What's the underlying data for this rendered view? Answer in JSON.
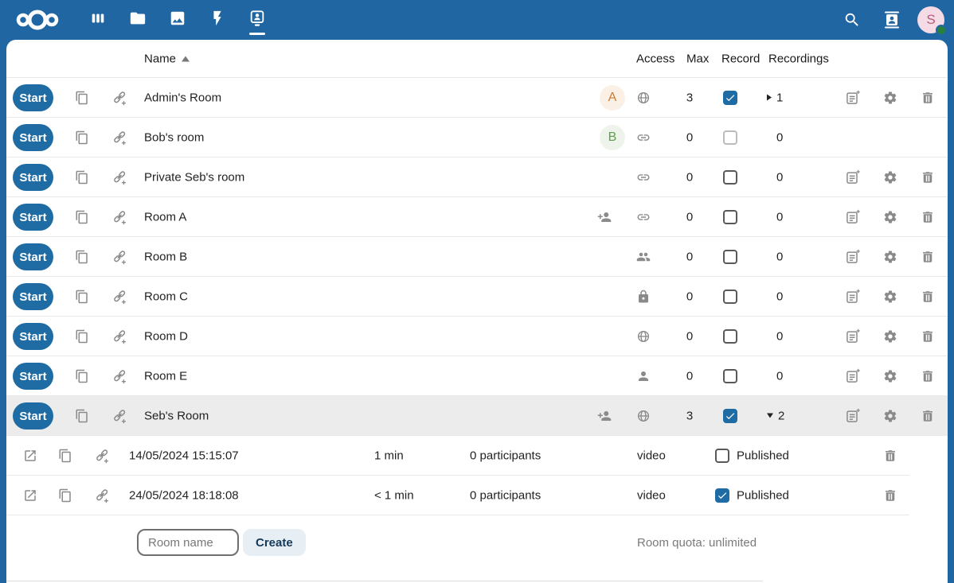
{
  "topbar": {
    "logo_icon": "nextcloud-logo",
    "nav": [
      {
        "id": "dashboard",
        "icon": "dashboard-icon",
        "active": false
      },
      {
        "id": "files",
        "icon": "folder-icon",
        "active": false
      },
      {
        "id": "photos",
        "icon": "photos-icon",
        "active": false
      },
      {
        "id": "activity",
        "icon": "activity-icon",
        "active": false
      },
      {
        "id": "bbb",
        "icon": "bbb-app-icon",
        "active": true
      }
    ],
    "search_icon": "search-icon",
    "contacts_icon": "contacts-icon",
    "avatar": {
      "letter": "S",
      "status": "online",
      "bg": "#f4dbe6",
      "fg": "#b55b7c",
      "status_color": "#27803b"
    }
  },
  "colors": {
    "header_blue": "#2066a3",
    "primary_blue": "#1e6ca3",
    "icon_gray": "#8a8a8a",
    "row_highlight": "#ececec"
  },
  "table": {
    "start_label": "Start",
    "headers": {
      "name": "Name",
      "access": "Access",
      "max": "Max",
      "record": "Record",
      "recordings": "Recordings"
    },
    "sort": "ascending",
    "row_icons": [
      "copy-icon",
      "add-link-icon"
    ],
    "action_icons": [
      "edit-document-icon",
      "settings-gear-icon",
      "delete-trash-icon"
    ],
    "rows": [
      {
        "name": "Admin's Room",
        "avatar": {
          "letter": "A",
          "fg": "#ca7b34",
          "bg": "#faf0e6"
        },
        "pre_access_icon": null,
        "access_icon": "globe-icon",
        "max": "3",
        "record_checked": true,
        "record_disabled": false,
        "recordings_count": "1",
        "expander": "collapsed",
        "has_actions": true,
        "highlighted": false
      },
      {
        "name": "Bob's room",
        "avatar": {
          "letter": "B",
          "fg": "#5f9e4f",
          "bg": "#eef4eb"
        },
        "pre_access_icon": null,
        "access_icon": "link-icon",
        "max": "0",
        "record_checked": false,
        "record_disabled": true,
        "recordings_count": "0",
        "expander": "none",
        "has_actions": false,
        "highlighted": false
      },
      {
        "name": "Private Seb's room",
        "avatar": null,
        "pre_access_icon": null,
        "access_icon": "link-icon",
        "max": "0",
        "record_checked": false,
        "record_disabled": false,
        "recordings_count": "0",
        "expander": "none",
        "has_actions": true,
        "highlighted": false
      },
      {
        "name": "Room A",
        "avatar": null,
        "pre_access_icon": "user-plus-icon",
        "access_icon": "link-icon",
        "max": "0",
        "record_checked": false,
        "record_disabled": false,
        "recordings_count": "0",
        "expander": "none",
        "has_actions": true,
        "highlighted": false
      },
      {
        "name": "Room B",
        "avatar": null,
        "pre_access_icon": null,
        "access_icon": "users-icon",
        "max": "0",
        "record_checked": false,
        "record_disabled": false,
        "recordings_count": "0",
        "expander": "none",
        "has_actions": true,
        "highlighted": false
      },
      {
        "name": "Room C",
        "avatar": null,
        "pre_access_icon": null,
        "access_icon": "lock-icon",
        "max": "0",
        "record_checked": false,
        "record_disabled": false,
        "recordings_count": "0",
        "expander": "none",
        "has_actions": true,
        "highlighted": false
      },
      {
        "name": "Room D",
        "avatar": null,
        "pre_access_icon": null,
        "access_icon": "globe-icon",
        "max": "0",
        "record_checked": false,
        "record_disabled": false,
        "recordings_count": "0",
        "expander": "none",
        "has_actions": true,
        "highlighted": false
      },
      {
        "name": "Room E",
        "avatar": null,
        "pre_access_icon": null,
        "access_icon": "user-icon",
        "max": "0",
        "record_checked": false,
        "record_disabled": false,
        "recordings_count": "0",
        "expander": "none",
        "has_actions": true,
        "highlighted": false
      },
      {
        "name": "Seb's Room",
        "avatar": null,
        "pre_access_icon": "user-plus-icon",
        "access_icon": "globe-icon",
        "max": "3",
        "record_checked": true,
        "record_disabled": false,
        "recordings_count": "2",
        "expander": "expanded",
        "has_actions": true,
        "highlighted": true
      }
    ]
  },
  "recordings": {
    "row_icons": [
      "open-external-icon",
      "copy-icon",
      "add-link-icon"
    ],
    "published_label": "Published",
    "rows": [
      {
        "date": "14/05/2024 15:15:07",
        "duration": "1 min",
        "participants": "0 participants",
        "type": "video",
        "published": false
      },
      {
        "date": "24/05/2024 18:18:08",
        "duration": "< 1 min",
        "participants": "0 participants",
        "type": "video",
        "published": true
      }
    ]
  },
  "footer": {
    "room_name_placeholder": "Room name",
    "create_label": "Create",
    "quota": "Room quota: unlimited"
  }
}
